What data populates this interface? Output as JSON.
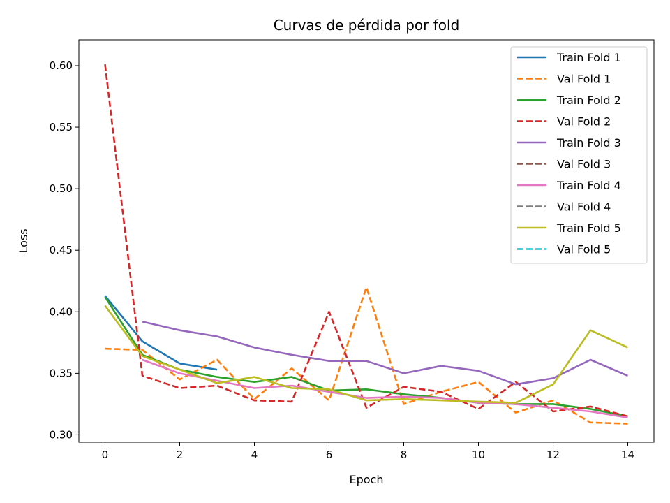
{
  "chart_data": {
    "type": "line",
    "title": "Curvas de pérdida por fold",
    "xlabel": "Epoch",
    "ylabel": "Loss",
    "xlim": [
      -0.7,
      14.7
    ],
    "ylim": [
      0.294,
      0.621
    ],
    "xticks": [
      0,
      2,
      4,
      6,
      8,
      10,
      12,
      14
    ],
    "xtick_labels": [
      "0",
      "2",
      "4",
      "6",
      "8",
      "10",
      "12",
      "14"
    ],
    "yticks": [
      0.3,
      0.35,
      0.4,
      0.45,
      0.5,
      0.55,
      0.6
    ],
    "ytick_labels": [
      "0.30",
      "0.35",
      "0.40",
      "0.45",
      "0.50",
      "0.55",
      "0.60"
    ],
    "grid": false,
    "legend_position": "top-right",
    "series": [
      {
        "name": "Train Fold 1",
        "color": "#1f77b4",
        "dash": "solid",
        "x": [
          0,
          1,
          2,
          3
        ],
        "values": [
          0.413,
          0.376,
          0.358,
          0.353
        ]
      },
      {
        "name": " Val  Fold 1",
        "color": "#ff7f0e",
        "dash": "dashed",
        "x": [
          0,
          1,
          2,
          3,
          4,
          5,
          6,
          7,
          8,
          9,
          10,
          11,
          12,
          13,
          14
        ],
        "values": [
          0.37,
          0.369,
          0.345,
          0.361,
          0.329,
          0.354,
          0.328,
          0.42,
          0.325,
          0.335,
          0.343,
          0.318,
          0.328,
          0.31,
          0.309
        ]
      },
      {
        "name": "Train Fold 2",
        "color": "#2ca02c",
        "dash": "solid",
        "x": [
          0,
          1,
          2,
          3,
          4,
          5,
          6,
          7,
          8,
          9,
          10,
          11,
          12,
          13,
          14
        ],
        "values": [
          0.412,
          0.365,
          0.353,
          0.347,
          0.343,
          0.347,
          0.336,
          0.337,
          0.333,
          0.33,
          0.326,
          0.325,
          0.325,
          0.321,
          0.315
        ]
      },
      {
        "name": " Val  Fold 2",
        "color": "#d62728",
        "dash": "dashed",
        "x": [
          0,
          1,
          2,
          3,
          4,
          5,
          6,
          7,
          8,
          9,
          10,
          11,
          12,
          13,
          14
        ],
        "values": [
          0.601,
          0.348,
          0.338,
          0.34,
          0.328,
          0.327,
          0.4,
          0.322,
          0.339,
          0.335,
          0.321,
          0.343,
          0.319,
          0.323,
          0.315
        ]
      },
      {
        "name": "Train Fold 3",
        "color": "#9467bd",
        "dash": "solid",
        "x": [
          1,
          2,
          3,
          4,
          5,
          6,
          7,
          8,
          9,
          10,
          11,
          12,
          13,
          14
        ],
        "values": [
          0.392,
          0.385,
          0.38,
          0.371,
          0.365,
          0.36,
          0.36,
          0.35,
          0.356,
          0.352,
          0.341,
          0.346,
          0.361,
          0.348
        ]
      },
      {
        "name": " Val  Fold 3",
        "color": "#8c564b",
        "dash": "dashed",
        "x": [],
        "values": []
      },
      {
        "name": "Train Fold 4",
        "color": "#e377c2",
        "dash": "solid",
        "x": [
          1,
          2,
          4,
          5,
          6,
          7,
          8,
          9,
          10,
          11,
          12,
          13,
          14
        ],
        "values": [
          0.361,
          0.35,
          0.338,
          0.34,
          0.335,
          0.33,
          0.331,
          0.33,
          0.326,
          0.325,
          0.322,
          0.319,
          0.314
        ]
      },
      {
        "name": " Val  Fold 4",
        "color": "#7f7f7f",
        "dash": "dashed",
        "x": [],
        "values": []
      },
      {
        "name": "Train Fold 5",
        "color": "#bcbd22",
        "dash": "solid",
        "x": [
          0,
          1,
          2,
          3,
          4,
          5,
          6,
          7,
          8,
          9,
          10,
          11,
          12,
          13,
          14
        ],
        "values": [
          0.405,
          0.364,
          0.353,
          0.342,
          0.347,
          0.338,
          0.337,
          0.328,
          0.329,
          0.328,
          0.327,
          0.326,
          0.341,
          0.385,
          0.371
        ]
      },
      {
        "name": " Val  Fold 5",
        "color": "#17becf",
        "dash": "dashed",
        "x": [],
        "values": []
      }
    ]
  }
}
